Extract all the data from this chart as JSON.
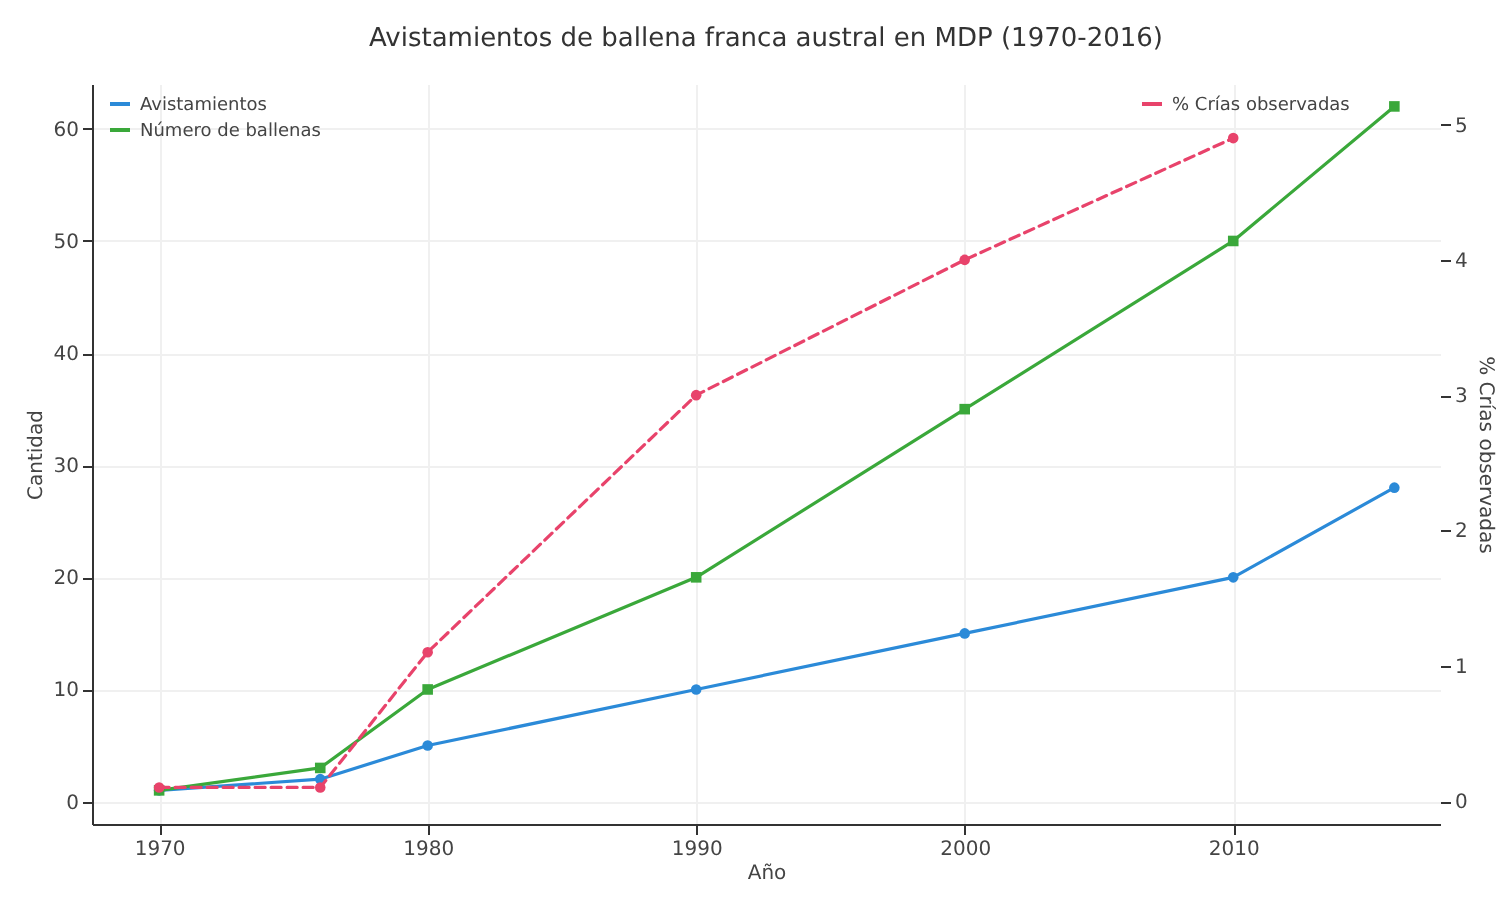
{
  "chart_data": {
    "type": "line",
    "title": "Avistamientos de ballena franca austral en MDP (1970-2016)",
    "xlabel": "Año",
    "ylabel": "Cantidad",
    "y2label": "% Crías observadas",
    "x": [
      1970,
      1976,
      1980,
      1990,
      2000,
      2010,
      2016
    ],
    "series": [
      {
        "name": "Avistamientos",
        "color": "#2b8ad8",
        "marker": "circle",
        "line_style": "solid",
        "values": [
          1,
          2,
          5,
          10,
          15,
          20,
          28
        ]
      },
      {
        "name": "Número de ballenas",
        "color": "#3aa83a",
        "marker": "square",
        "line_style": "solid",
        "values": [
          1,
          3,
          10,
          20,
          35,
          50,
          62
        ]
      },
      {
        "name": "% Crías observadas",
        "color": "#e8436b",
        "marker": "circle",
        "line_style": "dashed",
        "axis": "y2",
        "values": [
          0.1,
          0.1,
          1.1,
          3,
          4,
          4.9,
          null
        ]
      }
    ],
    "xlim": [
      1967.5,
      2017.7
    ],
    "xticks": [
      1970,
      1980,
      1990,
      2000,
      2010
    ],
    "ylim": [
      -2,
      64
    ],
    "yticks": [
      0,
      10,
      20,
      30,
      40,
      50,
      60
    ],
    "y2lim": [
      -0.17,
      5.3
    ],
    "y2ticks": [
      0,
      1,
      2,
      3,
      4,
      5
    ],
    "grid": true,
    "legend": "top right"
  }
}
